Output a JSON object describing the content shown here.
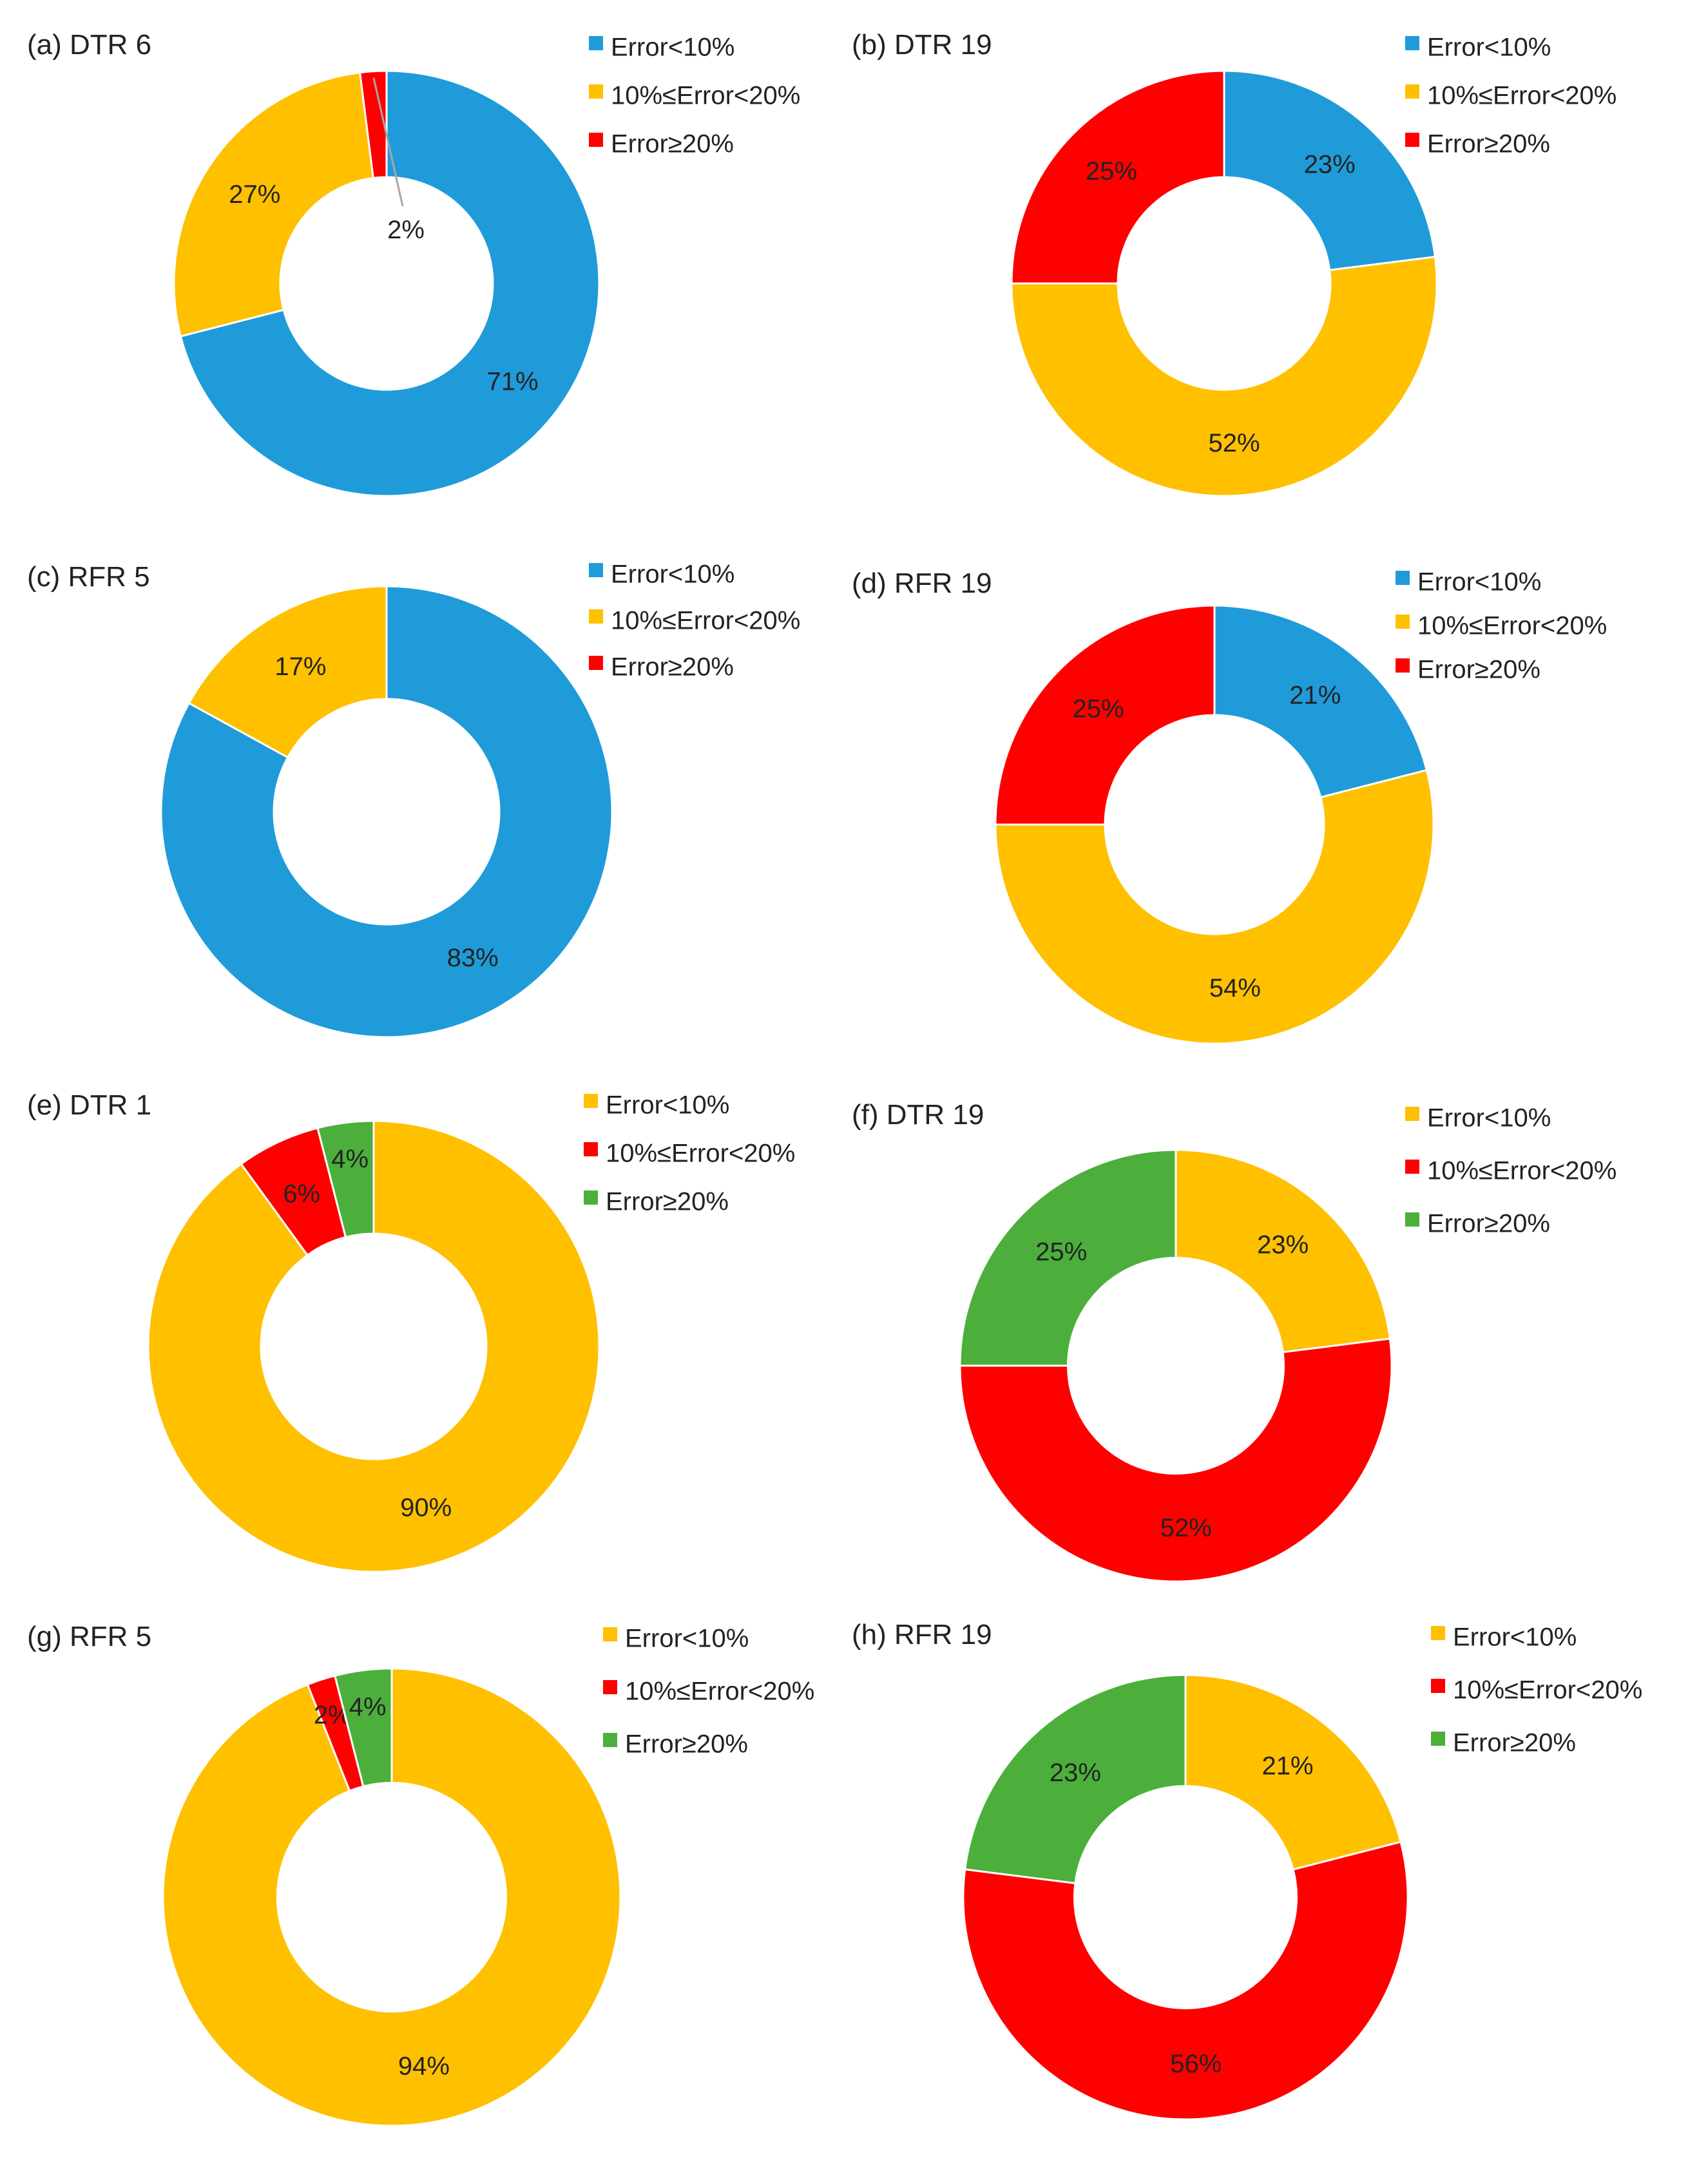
{
  "chart_data": [
    {
      "type": "pie",
      "style": "donut",
      "title": "(a) DTR 6",
      "categories": [
        "Error<10%",
        "10%≤Error<20%",
        "Error≥20%"
      ],
      "values": [
        71,
        27,
        2
      ],
      "labels": [
        "71%",
        "27%",
        "2%"
      ],
      "colors": [
        "#1f9bd9",
        "#ffc000",
        "#ff0000"
      ],
      "legend": "right"
    },
    {
      "type": "pie",
      "style": "donut",
      "title": "(b) DTR 19",
      "categories": [
        "Error<10%",
        "10%≤Error<20%",
        "Error≥20%"
      ],
      "values": [
        23,
        52,
        25
      ],
      "labels": [
        "23%",
        "52%",
        "25%"
      ],
      "colors": [
        "#1f9bd9",
        "#ffc000",
        "#ff0000"
      ],
      "legend": "right"
    },
    {
      "type": "pie",
      "style": "donut",
      "title": "(c) RFR 5",
      "categories": [
        "Error<10%",
        "10%≤Error<20%",
        "Error≥20%"
      ],
      "values": [
        83,
        17,
        0
      ],
      "labels": [
        "83%",
        "17%",
        ""
      ],
      "colors": [
        "#1f9bd9",
        "#ffc000",
        "#ff0000"
      ],
      "legend": "right"
    },
    {
      "type": "pie",
      "style": "donut",
      "title": "(d) RFR 19",
      "categories": [
        "Error<10%",
        "10%≤Error<20%",
        "Error≥20%"
      ],
      "values": [
        21,
        54,
        25
      ],
      "labels": [
        "21%",
        "54%",
        "25%"
      ],
      "colors": [
        "#1f9bd9",
        "#ffc000",
        "#ff0000"
      ],
      "legend": "right"
    },
    {
      "type": "pie",
      "style": "donut",
      "title": "(e) DTR 1",
      "categories": [
        "Error<10%",
        "10%≤Error<20%",
        "Error≥20%"
      ],
      "values": [
        90,
        6,
        4
      ],
      "labels": [
        "90%",
        "6%",
        "4%"
      ],
      "colors": [
        "#ffc000",
        "#ff0000",
        "#4caf3c"
      ],
      "legend": "right"
    },
    {
      "type": "pie",
      "style": "donut",
      "title": "(f) DTR 19",
      "categories": [
        "Error<10%",
        "10%≤Error<20%",
        "Error≥20%"
      ],
      "values": [
        23,
        52,
        25
      ],
      "labels": [
        "23%",
        "52%",
        "25%"
      ],
      "colors": [
        "#ffc000",
        "#ff0000",
        "#4caf3c"
      ],
      "legend": "right"
    },
    {
      "type": "pie",
      "style": "donut",
      "title": "(g) RFR 5",
      "categories": [
        "Error<10%",
        "10%≤Error<20%",
        "Error≥20%"
      ],
      "values": [
        94,
        2,
        4
      ],
      "labels": [
        "94%",
        "2%",
        "4%"
      ],
      "colors": [
        "#ffc000",
        "#ff0000",
        "#4caf3c"
      ],
      "legend": "right"
    },
    {
      "type": "pie",
      "style": "donut",
      "title": "(h) RFR 19",
      "categories": [
        "Error<10%",
        "10%≤Error<20%",
        "Error≥20%"
      ],
      "values": [
        21,
        56,
        23
      ],
      "labels": [
        "21%",
        "56%",
        "23%"
      ],
      "colors": [
        "#ffc000",
        "#ff0000",
        "#4caf3c"
      ],
      "legend": "right"
    }
  ]
}
